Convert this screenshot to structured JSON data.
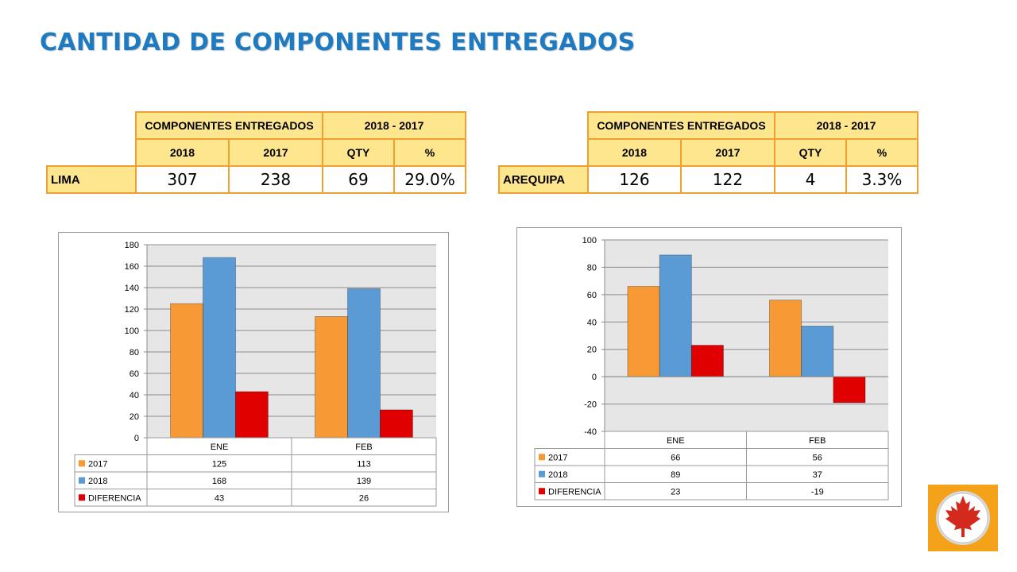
{
  "page": {
    "title": "CANTIDAD DE COMPONENTES ENTREGADOS"
  },
  "tables": [
    {
      "header_group": "COMPONENTES ENTREGADOS",
      "header_range": "2018 - 2017",
      "col_2018": "2018",
      "col_2017": "2017",
      "col_qty": "QTY",
      "col_pct": "%",
      "city": "LIMA",
      "v2018": "307",
      "v2017": "238",
      "qty": "69",
      "pct": "29.0%"
    },
    {
      "header_group": "COMPONENTES ENTREGADOS",
      "header_range": "2018 - 2017",
      "col_2018": "2018",
      "col_2017": "2017",
      "col_qty": "QTY",
      "col_pct": "%",
      "city": "AREQUIPA",
      "v2018": "126",
      "v2017": "122",
      "qty": "4",
      "pct": "3.3%"
    }
  ],
  "chart_data": [
    {
      "type": "bar",
      "categories": [
        "ENE",
        "FEB"
      ],
      "series": [
        {
          "name": "2017",
          "values": [
            125,
            113
          ],
          "color": "#f79a36"
        },
        {
          "name": "2018",
          "values": [
            168,
            139
          ],
          "color": "#5b9bd5"
        },
        {
          "name": "DIFERENCIA",
          "values": [
            43,
            26
          ],
          "color": "#e00000"
        }
      ],
      "ylim": [
        0,
        180
      ],
      "yticks": [
        0,
        20,
        40,
        60,
        80,
        100,
        120,
        140,
        160,
        180
      ],
      "grid": true,
      "legend": "data-table-below",
      "title": "",
      "xlabel": "",
      "ylabel": ""
    },
    {
      "type": "bar",
      "categories": [
        "ENE",
        "FEB"
      ],
      "series": [
        {
          "name": "2017",
          "values": [
            66,
            56
          ],
          "color": "#f79a36"
        },
        {
          "name": "2018",
          "values": [
            89,
            37
          ],
          "color": "#5b9bd5"
        },
        {
          "name": "DIFERENCIA",
          "values": [
            23,
            -19
          ],
          "color": "#e00000"
        }
      ],
      "ylim": [
        -40,
        100
      ],
      "yticks": [
        -40,
        -20,
        0,
        20,
        40,
        60,
        80,
        100
      ],
      "grid": true,
      "legend": "data-table-below",
      "title": "",
      "xlabel": "",
      "ylabel": ""
    }
  ],
  "logo": {
    "icon": "maple-leaf-icon",
    "background": "#f5a21b",
    "leaf_color": "#d42a1e"
  }
}
